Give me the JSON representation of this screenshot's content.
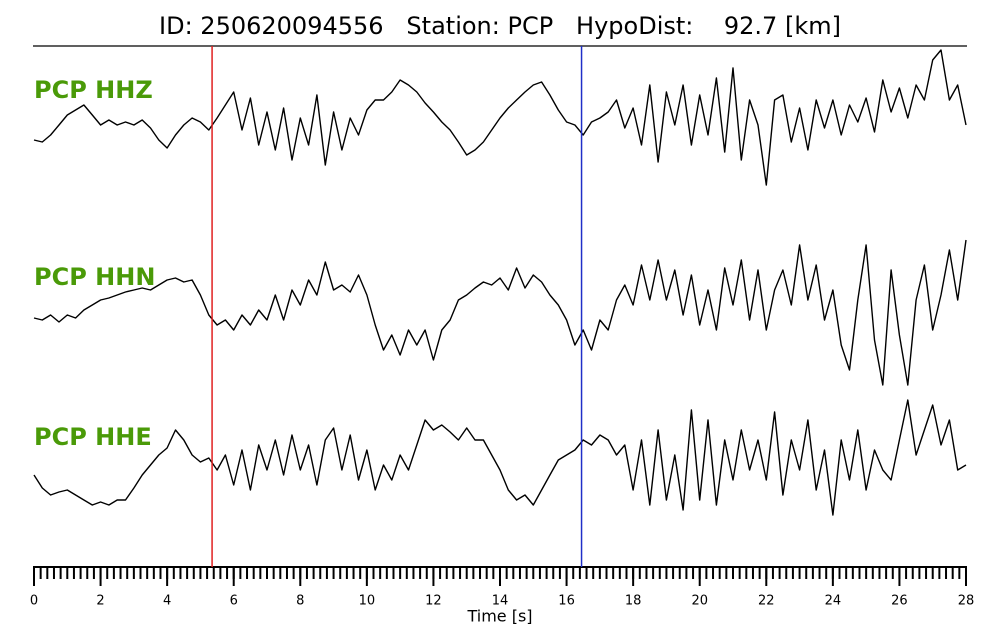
{
  "chart_data": {
    "type": "waveform",
    "title": "ID: 250620094556   Station: PCP   HypoDist:    92.7 [km]",
    "xlabel": "Time [s]",
    "xlim": [
      0,
      28
    ],
    "xticks": [
      0,
      2,
      4,
      6,
      8,
      10,
      12,
      14,
      16,
      18,
      20,
      22,
      24,
      26,
      28
    ],
    "x_minor_step": 0.2,
    "ylim": [
      -85,
      85
    ],
    "label_color": "#4a9a08",
    "markers": [
      {
        "x": 5.35,
        "color": "#e02020"
      },
      {
        "x": 16.45,
        "color": "#1f2fc8"
      }
    ],
    "x": [
      0,
      0.25,
      0.5,
      0.75,
      1,
      1.25,
      1.5,
      1.75,
      2,
      2.25,
      2.5,
      2.75,
      3,
      3.25,
      3.5,
      3.75,
      4,
      4.25,
      4.5,
      4.75,
      5,
      5.25,
      5.5,
      5.75,
      6,
      6.25,
      6.5,
      6.75,
      7,
      7.25,
      7.5,
      7.75,
      8,
      8.25,
      8.5,
      8.75,
      9,
      9.25,
      9.5,
      9.75,
      10,
      10.25,
      10.5,
      10.75,
      11,
      11.25,
      11.5,
      11.75,
      12,
      12.25,
      12.5,
      12.75,
      13,
      13.25,
      13.5,
      13.75,
      14,
      14.25,
      14.5,
      14.75,
      15,
      15.25,
      15.5,
      15.75,
      16,
      16.25,
      16.5,
      16.75,
      17,
      17.25,
      17.5,
      17.75,
      18,
      18.25,
      18.5,
      18.75,
      19,
      19.25,
      19.5,
      19.75,
      20,
      20.25,
      20.5,
      20.75,
      21,
      21.25,
      21.5,
      21.75,
      22,
      22.25,
      22.5,
      22.75,
      23,
      23.25,
      23.5,
      23.75,
      24,
      24.25,
      24.5,
      24.75,
      25,
      25.25,
      25.5,
      25.75,
      26,
      26.25,
      26.5,
      26.75,
      27,
      27.25,
      27.5,
      27.75,
      28
    ],
    "series": [
      {
        "name": "PCP HHZ",
        "color": "#000000",
        "values": [
          -22,
          -24,
          -17,
          -7,
          3,
          8,
          13,
          3,
          -7,
          -2,
          -7,
          -4,
          -7,
          -2,
          -10,
          -22,
          -30,
          -17,
          -7,
          0,
          -4,
          -12,
          0,
          13,
          26,
          -12,
          20,
          -27,
          6,
          -32,
          10,
          -42,
          0,
          -27,
          23,
          -47,
          6,
          -32,
          0,
          -17,
          8,
          18,
          18,
          26,
          38,
          33,
          26,
          15,
          6,
          -4,
          -12,
          -24,
          -37,
          -32,
          -24,
          -12,
          0,
          10,
          18,
          26,
          33,
          36,
          23,
          8,
          -4,
          -7,
          -17,
          -4,
          0,
          6,
          18,
          -10,
          10,
          -27,
          33,
          -44,
          26,
          -7,
          33,
          -27,
          23,
          -17,
          40,
          -34,
          50,
          -42,
          18,
          -7,
          -67,
          18,
          23,
          -24,
          10,
          -32,
          18,
          -10,
          18,
          -17,
          13,
          -4,
          20,
          -14,
          38,
          6,
          30,
          0,
          33,
          18,
          58,
          68,
          18,
          33,
          -7
        ]
      },
      {
        "name": "PCP HHN",
        "color": "#000000",
        "values": [
          -13,
          -15,
          -10,
          -17,
          -10,
          -13,
          -5,
          0,
          5,
          7,
          10,
          13,
          15,
          17,
          15,
          20,
          25,
          27,
          23,
          25,
          10,
          -10,
          -20,
          -15,
          -25,
          -10,
          -20,
          -5,
          -15,
          10,
          -15,
          15,
          0,
          25,
          10,
          43,
          15,
          20,
          13,
          30,
          10,
          -20,
          -45,
          -30,
          -50,
          -25,
          -40,
          -25,
          -55,
          -25,
          -15,
          5,
          10,
          17,
          23,
          20,
          27,
          15,
          37,
          17,
          30,
          23,
          10,
          0,
          -15,
          -40,
          -25,
          -45,
          -15,
          -25,
          5,
          20,
          0,
          40,
          5,
          45,
          5,
          35,
          -10,
          30,
          -20,
          15,
          -25,
          37,
          0,
          45,
          -15,
          35,
          -25,
          15,
          35,
          0,
          60,
          5,
          40,
          -15,
          15,
          -40,
          -65,
          5,
          60,
          -35,
          -80,
          35,
          -30,
          -80,
          5,
          40,
          -25,
          10,
          55,
          5,
          65
        ]
      },
      {
        "name": "PCP HHE",
        "color": "#000000",
        "values": [
          -10,
          -23,
          -30,
          -27,
          -25,
          -30,
          -35,
          -40,
          -37,
          -40,
          -35,
          -35,
          -23,
          -10,
          0,
          10,
          17,
          35,
          25,
          10,
          3,
          7,
          -5,
          10,
          -20,
          15,
          -25,
          20,
          -5,
          25,
          -10,
          30,
          -5,
          20,
          -20,
          25,
          37,
          -5,
          30,
          -15,
          15,
          -25,
          0,
          -15,
          10,
          -5,
          20,
          45,
          35,
          40,
          33,
          25,
          37,
          25,
          25,
          10,
          -5,
          -25,
          -35,
          -30,
          -40,
          -25,
          -10,
          5,
          10,
          15,
          25,
          20,
          30,
          25,
          10,
          20,
          -25,
          25,
          -40,
          35,
          -35,
          10,
          -45,
          55,
          -35,
          45,
          -40,
          25,
          -15,
          35,
          -5,
          25,
          -15,
          53,
          -30,
          25,
          -5,
          45,
          -25,
          15,
          -50,
          25,
          -15,
          35,
          -25,
          15,
          -5,
          -15,
          25,
          65,
          10,
          35,
          60,
          20,
          45,
          -5,
          0
        ]
      }
    ]
  }
}
